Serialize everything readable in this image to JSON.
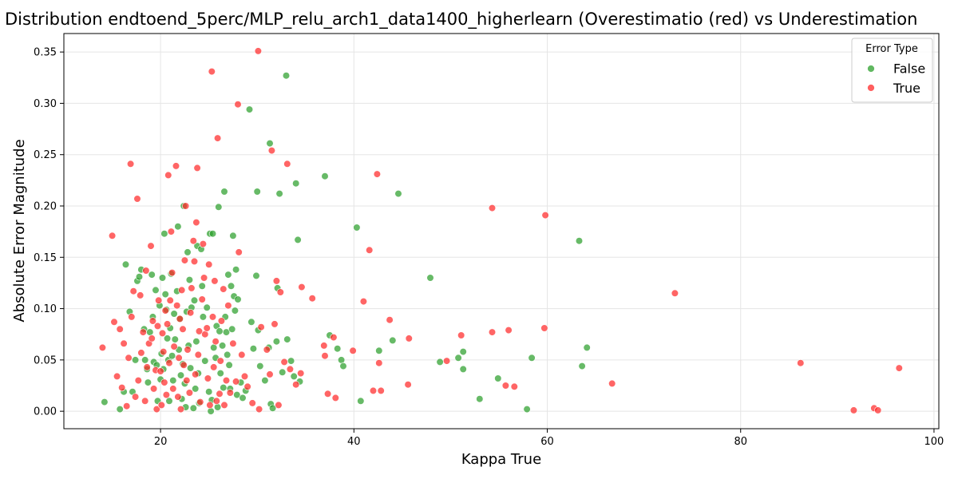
{
  "chart_data": {
    "type": "scatter",
    "title": "Distribution endtoend_5perc/MLP_relu_arch1_data1400_higherlearn (Overestimatio (red) vs Underestimation",
    "xlabel": "Kappa True",
    "ylabel": "Absolute Error Magnitude",
    "xlim": [
      10,
      100.5
    ],
    "ylim": [
      -0.017,
      0.368
    ],
    "xticks": [
      20,
      40,
      60,
      80,
      100
    ],
    "yticks": [
      0.0,
      0.05,
      0.1,
      0.15,
      0.2,
      0.25,
      0.3,
      0.35
    ],
    "grid": true,
    "legend": {
      "title": "Error Type",
      "position": "top-right",
      "entries": [
        "False",
        "True"
      ]
    },
    "series": [
      {
        "name": "False",
        "color": "#2ca02c",
        "points": [
          [
            14.2,
            0.009
          ],
          [
            15.8,
            0.002
          ],
          [
            16.2,
            0.019
          ],
          [
            16.4,
            0.143
          ],
          [
            16.8,
            0.097
          ],
          [
            17.1,
            0.019
          ],
          [
            17.4,
            0.05
          ],
          [
            17.6,
            0.127
          ],
          [
            17.8,
            0.131
          ],
          [
            18.0,
            0.138
          ],
          [
            18.3,
            0.08
          ],
          [
            18.4,
            0.05
          ],
          [
            18.6,
            0.041
          ],
          [
            18.7,
            0.028
          ],
          [
            18.9,
            0.077
          ],
          [
            19.1,
            0.133
          ],
          [
            19.2,
            0.092
          ],
          [
            19.3,
            0.048
          ],
          [
            19.5,
            0.118
          ],
          [
            19.6,
            0.045
          ],
          [
            19.7,
            0.01
          ],
          [
            19.9,
            0.103
          ],
          [
            20.0,
            0.031
          ],
          [
            20.1,
            0.056
          ],
          [
            20.2,
            0.13
          ],
          [
            20.3,
            0.041
          ],
          [
            20.4,
            0.173
          ],
          [
            20.5,
            0.114
          ],
          [
            20.6,
            0.099
          ],
          [
            20.7,
            0.071
          ],
          [
            20.8,
            0.05
          ],
          [
            20.9,
            0.01
          ],
          [
            21.0,
            0.081
          ],
          [
            21.1,
            0.134
          ],
          [
            21.2,
            0.054
          ],
          [
            21.3,
            0.03
          ],
          [
            21.4,
            0.095
          ],
          [
            21.5,
            0.07
          ],
          [
            21.7,
            0.117
          ],
          [
            21.8,
            0.18
          ],
          [
            21.9,
            0.06
          ],
          [
            22.0,
            0.09
          ],
          [
            22.1,
            0.035
          ],
          [
            22.2,
            0.012
          ],
          [
            22.3,
            0.046
          ],
          [
            22.4,
            0.2
          ],
          [
            22.5,
            0.027
          ],
          [
            22.6,
            0.004
          ],
          [
            22.7,
            0.097
          ],
          [
            22.8,
            0.155
          ],
          [
            22.9,
            0.064
          ],
          [
            23.0,
            0.128
          ],
          [
            23.1,
            0.042
          ],
          [
            23.2,
            0.101
          ],
          [
            23.4,
            0.003
          ],
          [
            23.5,
            0.108
          ],
          [
            23.6,
            0.022
          ],
          [
            23.7,
            0.068
          ],
          [
            23.8,
            0.161
          ],
          [
            23.9,
            0.037
          ],
          [
            24.0,
            0.008
          ],
          [
            24.2,
            0.158
          ],
          [
            24.3,
            0.122
          ],
          [
            24.4,
            0.092
          ],
          [
            24.6,
            0.049
          ],
          [
            24.8,
            0.101
          ],
          [
            25.0,
            0.019
          ],
          [
            25.1,
            0.173
          ],
          [
            25.2,
            0.0
          ],
          [
            25.3,
            0.011
          ],
          [
            25.4,
            0.173
          ],
          [
            25.5,
            0.062
          ],
          [
            25.7,
            0.052
          ],
          [
            25.8,
            0.083
          ],
          [
            25.9,
            0.004
          ],
          [
            26.0,
            0.199
          ],
          [
            26.1,
            0.078
          ],
          [
            26.2,
            0.037
          ],
          [
            26.4,
            0.064
          ],
          [
            26.5,
            0.023
          ],
          [
            26.6,
            0.214
          ],
          [
            26.7,
            0.092
          ],
          [
            26.8,
            0.077
          ],
          [
            26.9,
            0.055
          ],
          [
            27.0,
            0.133
          ],
          [
            27.1,
            0.045
          ],
          [
            27.2,
            0.022
          ],
          [
            27.3,
            0.122
          ],
          [
            27.4,
            0.08
          ],
          [
            27.5,
            0.171
          ],
          [
            27.6,
            0.112
          ],
          [
            27.7,
            0.098
          ],
          [
            27.8,
            0.138
          ],
          [
            27.9,
            0.016
          ],
          [
            28.0,
            0.109
          ],
          [
            28.3,
            0.028
          ],
          [
            28.5,
            0.013
          ],
          [
            28.8,
            0.02
          ],
          [
            29.2,
            0.294
          ],
          [
            29.4,
            0.087
          ],
          [
            29.6,
            0.061
          ],
          [
            29.9,
            0.132
          ],
          [
            30.0,
            0.214
          ],
          [
            30.1,
            0.079
          ],
          [
            30.3,
            0.044
          ],
          [
            30.8,
            0.03
          ],
          [
            31.2,
            0.062
          ],
          [
            31.3,
            0.261
          ],
          [
            31.4,
            0.007
          ],
          [
            31.6,
            0.003
          ],
          [
            32.0,
            0.068
          ],
          [
            32.1,
            0.12
          ],
          [
            32.3,
            0.212
          ],
          [
            32.6,
            0.038
          ],
          [
            33.0,
            0.327
          ],
          [
            33.1,
            0.07
          ],
          [
            33.5,
            0.049
          ],
          [
            33.8,
            0.034
          ],
          [
            34.0,
            0.222
          ],
          [
            34.2,
            0.167
          ],
          [
            34.4,
            0.029
          ],
          [
            37.0,
            0.229
          ],
          [
            37.5,
            0.074
          ],
          [
            38.3,
            0.061
          ],
          [
            38.7,
            0.05
          ],
          [
            38.9,
            0.044
          ],
          [
            40.3,
            0.179
          ],
          [
            40.7,
            0.01
          ],
          [
            42.6,
            0.059
          ],
          [
            44.0,
            0.069
          ],
          [
            44.6,
            0.212
          ],
          [
            47.9,
            0.13
          ],
          [
            48.9,
            0.048
          ],
          [
            50.8,
            0.052
          ],
          [
            51.3,
            0.058
          ],
          [
            51.3,
            0.041
          ],
          [
            53.0,
            0.012
          ],
          [
            54.9,
            0.032
          ],
          [
            57.9,
            0.002
          ],
          [
            58.4,
            0.052
          ],
          [
            63.3,
            0.166
          ],
          [
            63.6,
            0.044
          ],
          [
            64.1,
            0.062
          ]
        ]
      },
      {
        "name": "True",
        "color": "#ff2a2a",
        "points": [
          [
            14.0,
            0.062
          ],
          [
            15.0,
            0.171
          ],
          [
            15.2,
            0.087
          ],
          [
            15.5,
            0.034
          ],
          [
            15.8,
            0.08
          ],
          [
            16.0,
            0.023
          ],
          [
            16.2,
            0.066
          ],
          [
            16.5,
            0.005
          ],
          [
            16.7,
            0.052
          ],
          [
            16.9,
            0.241
          ],
          [
            17.0,
            0.092
          ],
          [
            17.2,
            0.117
          ],
          [
            17.4,
            0.014
          ],
          [
            17.6,
            0.207
          ],
          [
            17.7,
            0.03
          ],
          [
            17.9,
            0.113
          ],
          [
            18.0,
            0.057
          ],
          [
            18.2,
            0.077
          ],
          [
            18.4,
            0.01
          ],
          [
            18.5,
            0.137
          ],
          [
            18.6,
            0.043
          ],
          [
            18.8,
            0.066
          ],
          [
            19.0,
            0.161
          ],
          [
            19.1,
            0.071
          ],
          [
            19.2,
            0.088
          ],
          [
            19.3,
            0.022
          ],
          [
            19.5,
            0.04
          ],
          [
            19.6,
            0.002
          ],
          [
            19.7,
            0.083
          ],
          [
            19.8,
            0.108
          ],
          [
            20.0,
            0.039
          ],
          [
            20.1,
            0.006
          ],
          [
            20.2,
            0.076
          ],
          [
            20.3,
            0.058
          ],
          [
            20.4,
            0.028
          ],
          [
            20.5,
            0.098
          ],
          [
            20.6,
            0.016
          ],
          [
            20.7,
            0.085
          ],
          [
            20.8,
            0.23
          ],
          [
            20.9,
            0.047
          ],
          [
            21.0,
            0.108
          ],
          [
            21.1,
            0.175
          ],
          [
            21.2,
            0.135
          ],
          [
            21.3,
            0.022
          ],
          [
            21.4,
            0.063
          ],
          [
            21.6,
            0.239
          ],
          [
            21.7,
            0.103
          ],
          [
            21.8,
            0.014
          ],
          [
            21.9,
            0.052
          ],
          [
            22.0,
            0.09
          ],
          [
            22.1,
            0.002
          ],
          [
            22.2,
            0.118
          ],
          [
            22.3,
            0.08
          ],
          [
            22.4,
            0.045
          ],
          [
            22.5,
            0.147
          ],
          [
            22.6,
            0.2
          ],
          [
            22.7,
            0.03
          ],
          [
            22.8,
            0.06
          ],
          [
            23.0,
            0.018
          ],
          [
            23.1,
            0.096
          ],
          [
            23.2,
            0.12
          ],
          [
            23.4,
            0.166
          ],
          [
            23.5,
            0.146
          ],
          [
            23.6,
            0.036
          ],
          [
            23.7,
            0.184
          ],
          [
            23.8,
            0.237
          ],
          [
            23.9,
            0.055
          ],
          [
            24.0,
            0.078
          ],
          [
            24.1,
            0.009
          ],
          [
            24.3,
            0.109
          ],
          [
            24.4,
            0.163
          ],
          [
            24.5,
            0.13
          ],
          [
            24.6,
            0.075
          ],
          [
            24.8,
            0.081
          ],
          [
            24.9,
            0.032
          ],
          [
            25.0,
            0.143
          ],
          [
            25.1,
            0.006
          ],
          [
            25.3,
            0.331
          ],
          [
            25.4,
            0.092
          ],
          [
            25.5,
            0.043
          ],
          [
            25.6,
            0.127
          ],
          [
            25.7,
            0.068
          ],
          [
            25.8,
            0.01
          ],
          [
            25.9,
            0.266
          ],
          [
            26.1,
            0.017
          ],
          [
            26.2,
            0.049
          ],
          [
            26.3,
            0.088
          ],
          [
            26.5,
            0.119
          ],
          [
            26.6,
            0.006
          ],
          [
            26.8,
            0.03
          ],
          [
            27.0,
            0.103
          ],
          [
            27.2,
            0.018
          ],
          [
            27.5,
            0.066
          ],
          [
            27.8,
            0.029
          ],
          [
            28.0,
            0.299
          ],
          [
            28.1,
            0.155
          ],
          [
            28.4,
            0.055
          ],
          [
            28.7,
            0.034
          ],
          [
            29.0,
            0.024
          ],
          [
            29.5,
            0.008
          ],
          [
            30.1,
            0.351
          ],
          [
            30.2,
            0.002
          ],
          [
            30.4,
            0.082
          ],
          [
            31.0,
            0.06
          ],
          [
            31.3,
            0.036
          ],
          [
            31.5,
            0.254
          ],
          [
            31.8,
            0.085
          ],
          [
            32.0,
            0.127
          ],
          [
            32.2,
            0.006
          ],
          [
            32.4,
            0.116
          ],
          [
            32.8,
            0.048
          ],
          [
            33.1,
            0.241
          ],
          [
            33.4,
            0.041
          ],
          [
            34.0,
            0.026
          ],
          [
            34.5,
            0.037
          ],
          [
            34.6,
            0.121
          ],
          [
            35.7,
            0.11
          ],
          [
            36.9,
            0.064
          ],
          [
            37.0,
            0.054
          ],
          [
            37.3,
            0.017
          ],
          [
            37.9,
            0.072
          ],
          [
            38.1,
            0.013
          ],
          [
            39.9,
            0.059
          ],
          [
            41.0,
            0.107
          ],
          [
            41.6,
            0.157
          ],
          [
            42.0,
            0.02
          ],
          [
            42.4,
            0.231
          ],
          [
            42.6,
            0.047
          ],
          [
            42.8,
            0.02
          ],
          [
            43.7,
            0.089
          ],
          [
            45.6,
            0.026
          ],
          [
            45.7,
            0.071
          ],
          [
            49.6,
            0.049
          ],
          [
            51.1,
            0.074
          ],
          [
            54.3,
            0.198
          ],
          [
            54.3,
            0.077
          ],
          [
            55.7,
            0.025
          ],
          [
            56.0,
            0.079
          ],
          [
            56.6,
            0.024
          ],
          [
            59.7,
            0.081
          ],
          [
            59.8,
            0.191
          ],
          [
            66.7,
            0.027
          ],
          [
            73.2,
            0.115
          ],
          [
            86.2,
            0.047
          ],
          [
            91.7,
            0.001
          ],
          [
            93.8,
            0.003
          ],
          [
            94.2,
            0.001
          ],
          [
            96.4,
            0.042
          ]
        ]
      }
    ]
  }
}
